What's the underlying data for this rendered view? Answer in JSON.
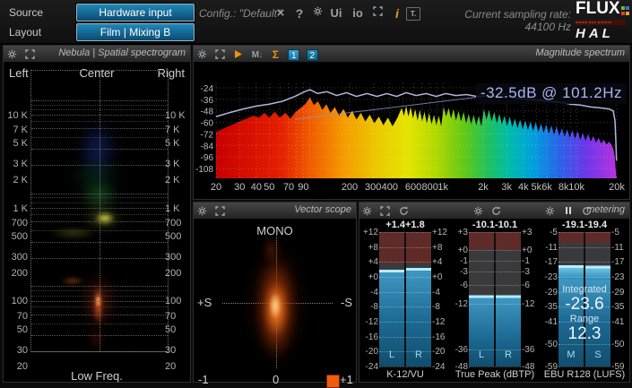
{
  "top_bar": {
    "source_label": "Source",
    "source_button": "Hardware input",
    "layout_label": "Layout",
    "layout_button": "Film | Mixing B",
    "config_text": "Config.: \"Default\"",
    "ui_label": "Ui",
    "io_label": "io",
    "info_label": "i",
    "t_label": "T.",
    "sampling_rate": "Current sampling rate: 44100 Hz",
    "brand": {
      "name": "FLUX",
      "tagline": "sound and picture development",
      "product": "HAL"
    },
    "accent_colors": {
      "button_blue": "#1f88b8",
      "info_orange": "#e89c28"
    }
  },
  "nebula": {
    "title": "Nebula | Spatial spectrogram",
    "top_labels": {
      "left": "Left",
      "center": "Center",
      "right": "Right"
    },
    "freq_ticks": [
      "10 K",
      "7 K",
      "5 K",
      "3 K",
      "2 K",
      "1 K",
      "700",
      "500",
      "300",
      "200",
      "100",
      "70",
      "50",
      "30",
      "20"
    ],
    "xlabel": "Low Freq."
  },
  "magnitude": {
    "title": "Magnitude spectrum",
    "view_buttons": [
      "1",
      "2"
    ],
    "readout": "-32.5dB @ 101.2Hz"
  },
  "vectorscope": {
    "title": "Vector scope",
    "mode": "MONO",
    "left_label": "+S",
    "right_label": "-S",
    "min": "-1",
    "zero": "0",
    "max": "+1"
  },
  "metering": {
    "title": "metering",
    "groups": [
      {
        "footer": "K-12/VU",
        "channels": [
          "L",
          "R"
        ],
        "values": [
          "+1.4",
          "+1.8"
        ],
        "ticks": [
          "+12",
          "+8",
          "+4",
          "+0",
          "-4",
          "-8",
          "-12",
          "-16",
          "-20",
          "-24"
        ]
      },
      {
        "footer": "True Peak (dBTP)",
        "channels": [
          "L",
          "R"
        ],
        "values": [
          "-10.1",
          "-10.1"
        ],
        "ticks": [
          "+3",
          "+0",
          "-1",
          "-3",
          "-6",
          "-12",
          "-36",
          "-48"
        ]
      },
      {
        "footer": "EBU R128 (LUFS)",
        "channels": [
          "M",
          "S"
        ],
        "values": [
          "-19.1",
          "-19.4"
        ],
        "ticks": [
          "-5",
          "-11",
          "-17",
          "-23",
          "-29",
          "-35",
          "-41",
          "-50",
          "-59"
        ],
        "integrated_label": "Integrated",
        "integrated_value": "-23.6",
        "range_label": "Range",
        "range_value": "12.3"
      }
    ]
  },
  "chart_data": {
    "type": "area",
    "title": "Magnitude spectrum",
    "x_scale": "log",
    "x_ticks": [
      "20",
      "30",
      "40",
      "50",
      "70",
      "90",
      "200",
      "300",
      "400",
      "600",
      "800",
      "1k",
      "2k",
      "3k",
      "4k",
      "5k",
      "6k",
      "8k",
      "10k",
      "20k"
    ],
    "y_ticks": [
      -24,
      -36,
      -48,
      -60,
      -72,
      -84,
      -96,
      -108
    ],
    "x_range_hz": [
      20,
      20000
    ],
    "y_range_db": [
      -108,
      -24
    ],
    "readout": "-32.5dB @ 101.2Hz",
    "series": [
      {
        "name": "spectrum",
        "style": "rainbow-area",
        "points": [
          [
            20,
            -70
          ],
          [
            23,
            -66
          ],
          [
            26,
            -63
          ],
          [
            30,
            -59
          ],
          [
            34,
            -56
          ],
          [
            38,
            -53
          ],
          [
            42,
            -55
          ],
          [
            46,
            -50
          ],
          [
            50,
            -55
          ],
          [
            55,
            -49
          ],
          [
            60,
            -55
          ],
          [
            66,
            -50
          ],
          [
            72,
            -56
          ],
          [
            79,
            -49
          ],
          [
            86,
            -45
          ],
          [
            93,
            -41
          ],
          [
            101,
            -34
          ],
          [
            108,
            -42
          ],
          [
            116,
            -38
          ],
          [
            125,
            -47
          ],
          [
            134,
            -41
          ],
          [
            144,
            -50
          ],
          [
            155,
            -44
          ],
          [
            167,
            -53
          ],
          [
            180,
            -46
          ],
          [
            194,
            -55
          ],
          [
            209,
            -48
          ],
          [
            225,
            -57
          ],
          [
            243,
            -50
          ],
          [
            262,
            -59
          ],
          [
            283,
            -52
          ],
          [
            306,
            -61
          ],
          [
            331,
            -54
          ],
          [
            358,
            -63
          ],
          [
            387,
            -55
          ],
          [
            419,
            -64
          ],
          [
            453,
            -56
          ],
          [
            490,
            -45
          ],
          [
            510,
            -53
          ],
          [
            530,
            -43
          ],
          [
            551,
            -54
          ],
          [
            573,
            -44
          ],
          [
            596,
            -56
          ],
          [
            620,
            -46
          ],
          [
            645,
            -58
          ],
          [
            671,
            -47
          ],
          [
            698,
            -59
          ],
          [
            727,
            -49
          ],
          [
            757,
            -61
          ],
          [
            788,
            -50
          ],
          [
            821,
            -62
          ],
          [
            856,
            -52
          ],
          [
            892,
            -63
          ],
          [
            930,
            -53
          ],
          [
            970,
            -64
          ],
          [
            1012,
            -44
          ],
          [
            1056,
            -54
          ],
          [
            1102,
            -45
          ],
          [
            1150,
            -56
          ],
          [
            1200,
            -46
          ],
          [
            1253,
            -58
          ],
          [
            1308,
            -48
          ],
          [
            1366,
            -59
          ],
          [
            1427,
            -49
          ],
          [
            1490,
            -61
          ],
          [
            1556,
            -51
          ],
          [
            1626,
            -62
          ],
          [
            1699,
            -52
          ],
          [
            1775,
            -63
          ],
          [
            1855,
            -53
          ],
          [
            1938,
            -64
          ],
          [
            2025,
            -46
          ],
          [
            2117,
            -57
          ],
          [
            2213,
            -47
          ],
          [
            2313,
            -59
          ],
          [
            2418,
            -49
          ],
          [
            2528,
            -61
          ],
          [
            2643,
            -51
          ],
          [
            2764,
            -62
          ],
          [
            2890,
            -53
          ],
          [
            3022,
            -64
          ],
          [
            3160,
            -54
          ],
          [
            3305,
            -65
          ],
          [
            3457,
            -56
          ],
          [
            3615,
            -66
          ],
          [
            3781,
            -57
          ],
          [
            3954,
            -67
          ],
          [
            4136,
            -58
          ],
          [
            4326,
            -68
          ],
          [
            4525,
            -59
          ],
          [
            4733,
            -69
          ],
          [
            4950,
            -60
          ],
          [
            5178,
            -70
          ],
          [
            5416,
            -61
          ],
          [
            5666,
            -71
          ],
          [
            5927,
            -62
          ],
          [
            6200,
            -72
          ],
          [
            6486,
            -63
          ],
          [
            6785,
            -73
          ],
          [
            7098,
            -64
          ],
          [
            7426,
            -74
          ],
          [
            7769,
            -66
          ],
          [
            8128,
            -75
          ],
          [
            8503,
            -67
          ],
          [
            8896,
            -76
          ],
          [
            9307,
            -68
          ],
          [
            9737,
            -77
          ],
          [
            10187,
            -69
          ],
          [
            10658,
            -78
          ],
          [
            11151,
            -71
          ],
          [
            11668,
            -79
          ],
          [
            12208,
            -72
          ],
          [
            12774,
            -80
          ],
          [
            13366,
            -74
          ],
          [
            13986,
            -81
          ],
          [
            14634,
            -76
          ],
          [
            15312,
            -82
          ],
          [
            16022,
            -78
          ],
          [
            16764,
            -83
          ],
          [
            17540,
            -80
          ],
          [
            18352,
            -84
          ],
          [
            18900,
            -88
          ],
          [
            19300,
            -96
          ],
          [
            19600,
            -108
          ],
          [
            19850,
            -116
          ]
        ]
      },
      {
        "name": "peak-average",
        "style": "line",
        "color": "#b9bfe8",
        "points": [
          [
            20,
            -54
          ],
          [
            25,
            -50
          ],
          [
            32,
            -46
          ],
          [
            40,
            -43
          ],
          [
            50,
            -41
          ],
          [
            63,
            -38
          ],
          [
            78,
            -33
          ],
          [
            92,
            -28
          ],
          [
            101,
            -26
          ],
          [
            115,
            -30
          ],
          [
            135,
            -28
          ],
          [
            160,
            -32
          ],
          [
            190,
            -29
          ],
          [
            225,
            -33
          ],
          [
            270,
            -30
          ],
          [
            320,
            -33
          ],
          [
            380,
            -30
          ],
          [
            450,
            -33
          ],
          [
            530,
            -29
          ],
          [
            630,
            -32
          ],
          [
            750,
            -30
          ],
          [
            890,
            -33
          ],
          [
            1050,
            -30
          ],
          [
            1250,
            -32
          ],
          [
            1500,
            -31
          ],
          [
            1800,
            -33
          ],
          [
            2150,
            -32
          ],
          [
            2600,
            -34
          ],
          [
            3100,
            -33
          ],
          [
            3700,
            -35
          ],
          [
            4400,
            -36
          ],
          [
            5300,
            -37
          ],
          [
            6300,
            -38
          ],
          [
            7500,
            -39
          ],
          [
            9000,
            -41
          ],
          [
            10700,
            -42
          ],
          [
            12800,
            -44
          ],
          [
            15300,
            -45
          ],
          [
            17500,
            -46
          ],
          [
            18800,
            -48
          ],
          [
            19400,
            -58
          ],
          [
            19700,
            -80
          ],
          [
            19900,
            -100
          ]
        ]
      }
    ]
  }
}
